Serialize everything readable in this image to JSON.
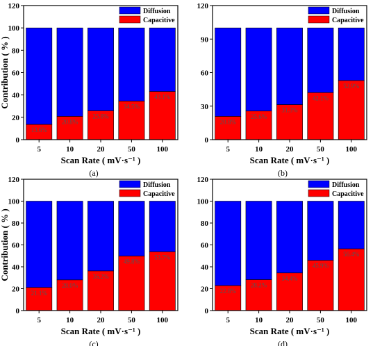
{
  "colors": {
    "diffusion": "#0000ff",
    "capacitive": "#ff0000",
    "bar_edge": "#000000",
    "axis": "#000000",
    "data_label": "#555555"
  },
  "chart_data": [
    {
      "type": "bar",
      "stacked": true,
      "panel_label": "(a)",
      "categories": [
        "5",
        "10",
        "20",
        "50",
        "100"
      ],
      "series": [
        {
          "name": "Diffusion",
          "values": [
            86.4,
            79.2,
            74.2,
            65.5,
            56.9
          ]
        },
        {
          "name": "Capacitive",
          "values": [
            13.6,
            20.8,
            25.8,
            34.5,
            43.1
          ]
        }
      ],
      "data_labels": [
        "13.6%",
        "20.8%",
        "25.8%",
        "34.5%",
        "43.1%"
      ],
      "xlabel": "Scan Rate ( mV·s⁻¹ )",
      "ylabel": "Contribution ( % )",
      "ylim": [
        0,
        120
      ],
      "yticks": [
        0,
        20,
        40,
        60,
        80,
        100,
        120
      ],
      "legend": "top-right",
      "grid": false
    },
    {
      "type": "bar",
      "stacked": true,
      "panel_label": "(b)",
      "categories": [
        "5",
        "10",
        "20",
        "50",
        "100"
      ],
      "series": [
        {
          "name": "Diffusion",
          "values": [
            79.2,
            74.4,
            68.7,
            57.9,
            47.1
          ]
        },
        {
          "name": "Capacitive",
          "values": [
            20.8,
            25.6,
            31.3,
            42.1,
            52.9
          ]
        }
      ],
      "data_labels": [
        "20.8%",
        "25.6%",
        "31.3%",
        "42.1%",
        "52.9%"
      ],
      "xlabel": "Scan Rate ( mV·s⁻¹ )",
      "ylabel": "",
      "ylim": [
        0,
        120
      ],
      "yticks": [
        0,
        30,
        60,
        90,
        120
      ],
      "legend": "top-right",
      "grid": false
    },
    {
      "type": "bar",
      "stacked": true,
      "panel_label": "(c)",
      "categories": [
        "5",
        "10",
        "20",
        "50",
        "100"
      ],
      "series": [
        {
          "name": "Diffusion",
          "values": [
            78.9,
            72.0,
            63.8,
            50.2,
            46.3
          ]
        },
        {
          "name": "Capacitive",
          "values": [
            21.1,
            28.0,
            36.2,
            49.8,
            53.7
          ]
        }
      ],
      "data_labels": [
        "21.1%",
        "28.0%",
        "36.2%",
        "49.8%",
        "53.7%"
      ],
      "xlabel": "Scan Rate ( mV·s⁻¹ )",
      "ylabel": "Contribution ( % )",
      "ylim": [
        0,
        120
      ],
      "yticks": [
        0,
        20,
        40,
        60,
        80,
        100,
        120
      ],
      "legend": "top-right",
      "grid": false
    },
    {
      "type": "bar",
      "stacked": true,
      "panel_label": "(d)",
      "categories": [
        "5",
        "10",
        "20",
        "50",
        "100"
      ],
      "series": [
        {
          "name": "Diffusion",
          "values": [
            77.2,
            71.8,
            65.6,
            54.1,
            43.6
          ]
        },
        {
          "name": "Capacitive",
          "values": [
            22.8,
            28.2,
            34.4,
            45.9,
            56.4
          ]
        }
      ],
      "data_labels": [
        "22.8%",
        "28.2%",
        "34.4%",
        "45.9%",
        "56.4%"
      ],
      "xlabel": "Scan Rate ( mV·s⁻¹ )",
      "ylabel": "",
      "ylim": [
        0,
        120
      ],
      "yticks": [
        0,
        20,
        40,
        60,
        80,
        100,
        120
      ],
      "legend": "top-right",
      "grid": false
    }
  ]
}
